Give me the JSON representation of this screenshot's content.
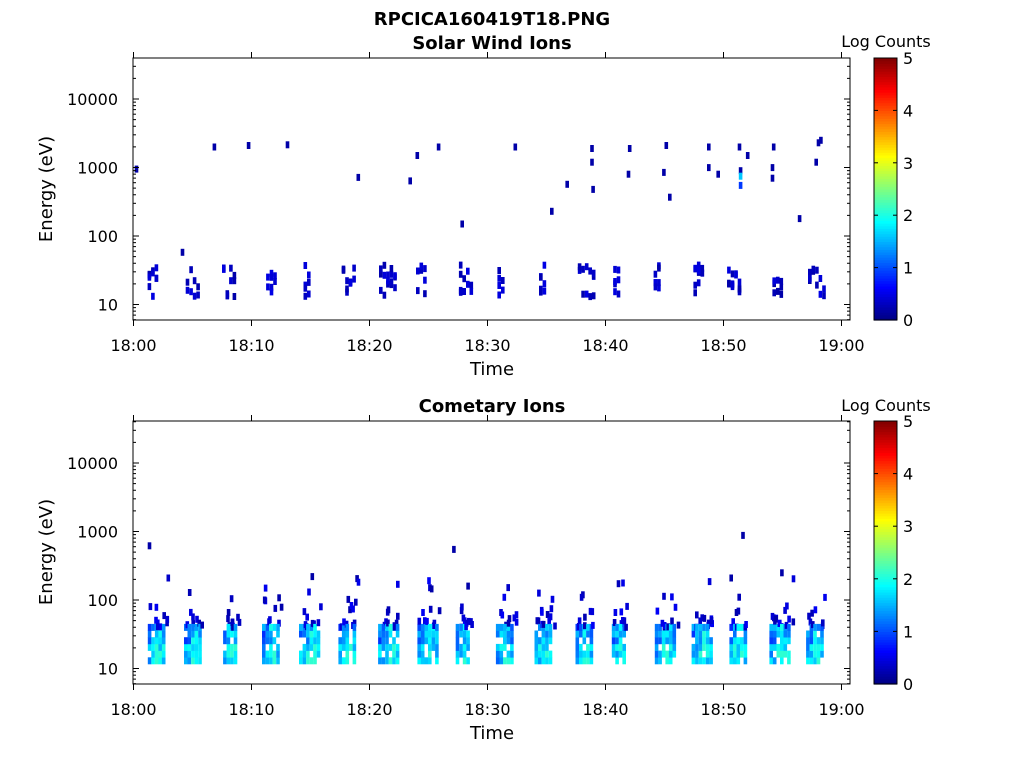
{
  "figure": {
    "title": "RPCICA160419T18.PNG"
  },
  "chart_data": [
    {
      "type": "heatmap",
      "title": "Solar Wind Ions",
      "xlabel": "Time",
      "ylabel": "Energy (eV)",
      "x_ticks": [
        "18:00",
        "18:10",
        "18:20",
        "18:30",
        "18:40",
        "18:50",
        "19:00"
      ],
      "y_ticks": [
        "10",
        "100",
        "1000",
        "10000"
      ],
      "y_scale": "log",
      "colorbar": {
        "label": "Log Counts",
        "ticks": [
          "0",
          "1",
          "2",
          "3",
          "4",
          "5"
        ],
        "range": [
          0,
          5
        ],
        "colormap": "jet"
      },
      "pattern": {
        "low_band_ev": [
          13,
          38
        ],
        "sweep_period_min": 3.3,
        "typical_log_counts": 0.2,
        "peak_log_counts": 1.6
      },
      "isolated_points": [
        {
          "t": 0.1,
          "e": 950,
          "v": 0.2
        },
        {
          "t": 4.0,
          "e": 58,
          "v": 0.2
        },
        {
          "t": 6.7,
          "e": 2000,
          "v": 0.2
        },
        {
          "t": 9.6,
          "e": 2100,
          "v": 0.2
        },
        {
          "t": 12.9,
          "e": 2150,
          "v": 0.2
        },
        {
          "t": 18.9,
          "e": 720,
          "v": 0.2
        },
        {
          "t": 23.3,
          "e": 640,
          "v": 0.2
        },
        {
          "t": 23.9,
          "e": 1500,
          "v": 0.2
        },
        {
          "t": 25.7,
          "e": 2000,
          "v": 0.2
        },
        {
          "t": 27.7,
          "e": 150,
          "v": 0.2
        },
        {
          "t": 32.2,
          "e": 2000,
          "v": 0.2
        },
        {
          "t": 35.3,
          "e": 230,
          "v": 0.2
        },
        {
          "t": 36.6,
          "e": 570,
          "v": 0.2
        },
        {
          "t": 38.7,
          "e": 1900,
          "v": 0.2
        },
        {
          "t": 38.7,
          "e": 1200,
          "v": 0.2
        },
        {
          "t": 38.8,
          "e": 480,
          "v": 0.2
        },
        {
          "t": 41.9,
          "e": 1900,
          "v": 0.2
        },
        {
          "t": 41.8,
          "e": 800,
          "v": 0.2
        },
        {
          "t": 44.8,
          "e": 850,
          "v": 0.2
        },
        {
          "t": 45.0,
          "e": 2100,
          "v": 0.2
        },
        {
          "t": 45.3,
          "e": 370,
          "v": 0.2
        },
        {
          "t": 48.6,
          "e": 2000,
          "v": 0.2
        },
        {
          "t": 48.6,
          "e": 1000,
          "v": 0.2
        },
        {
          "t": 49.4,
          "e": 800,
          "v": 0.2
        },
        {
          "t": 51.2,
          "e": 2000,
          "v": 0.2
        },
        {
          "t": 51.3,
          "e": 900,
          "v": 0.2
        },
        {
          "t": 51.3,
          "e": 750,
          "v": 1.6
        },
        {
          "t": 51.3,
          "e": 550,
          "v": 0.9
        },
        {
          "t": 51.9,
          "e": 1500,
          "v": 0.2
        },
        {
          "t": 54.1,
          "e": 2000,
          "v": 0.2
        },
        {
          "t": 54.0,
          "e": 1000,
          "v": 0.2
        },
        {
          "t": 54.0,
          "e": 700,
          "v": 0.2
        },
        {
          "t": 56.3,
          "e": 180,
          "v": 0.2
        },
        {
          "t": 57.9,
          "e": 2300,
          "v": 0.2
        },
        {
          "t": 58.1,
          "e": 2500,
          "v": 0.2
        },
        {
          "t": 57.7,
          "e": 1200,
          "v": 0.2
        }
      ]
    },
    {
      "type": "heatmap",
      "title": "Cometary Ions",
      "xlabel": "Time",
      "ylabel": "Energy (eV)",
      "x_ticks": [
        "18:00",
        "18:10",
        "18:20",
        "18:30",
        "18:40",
        "18:50",
        "19:00"
      ],
      "y_ticks": [
        "10",
        "100",
        "1000",
        "10000"
      ],
      "y_scale": "log",
      "colorbar": {
        "label": "Log Counts",
        "ticks": [
          "0",
          "1",
          "2",
          "3",
          "4",
          "5"
        ],
        "range": [
          0,
          5
        ],
        "colormap": "jet"
      },
      "pattern": {
        "core_band_ev": [
          13,
          40
        ],
        "upper_scatter_ev": [
          40,
          250
        ],
        "sweep_period_min": 3.3,
        "peak_log_counts": 2.1
      },
      "isolated_points": [
        {
          "t": 1.2,
          "e": 620,
          "v": 0.2
        },
        {
          "t": 27.0,
          "e": 550,
          "v": 0.2
        },
        {
          "t": 28.2,
          "e": 160,
          "v": 0.2
        },
        {
          "t": 51.5,
          "e": 880,
          "v": 0.2
        },
        {
          "t": 50.5,
          "e": 210,
          "v": 0.2
        },
        {
          "t": 54.8,
          "e": 250,
          "v": 0.2
        },
        {
          "t": 15.0,
          "e": 220,
          "v": 0.2
        }
      ]
    }
  ]
}
